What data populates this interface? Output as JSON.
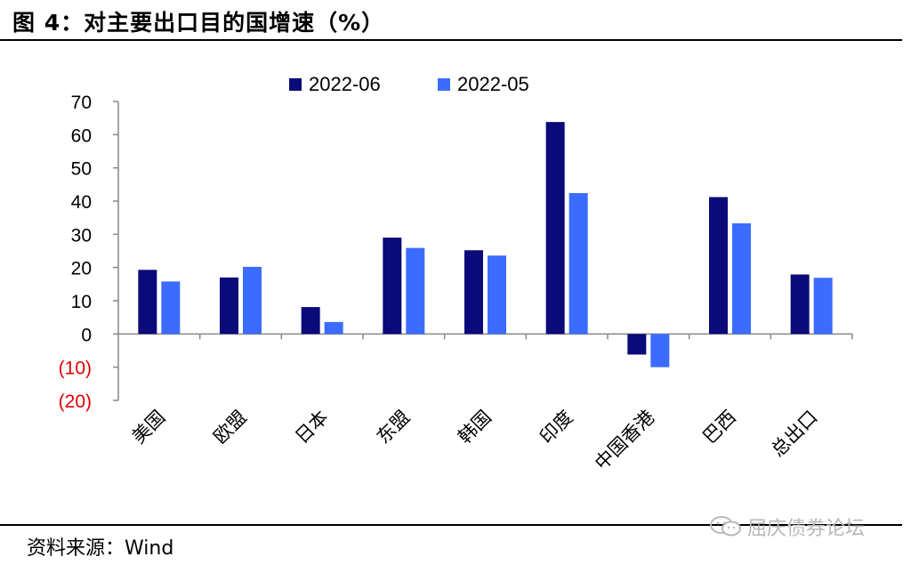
{
  "figure": {
    "title": "图 4：对主要出口目的国增速（%）",
    "source": "资料来源：Wind",
    "watermark": "屈庆债券论坛"
  },
  "chart_data": {
    "type": "bar",
    "categories": [
      "美国",
      "欧盟",
      "日本",
      "东盟",
      "韩国",
      "印度",
      "中国香港",
      "巴西",
      "总出口"
    ],
    "series": [
      {
        "name": "2022-06",
        "color": "#0a0a7a",
        "values": [
          19.3,
          17.0,
          8.1,
          29.0,
          25.2,
          63.8,
          -6.2,
          41.2,
          17.9
        ]
      },
      {
        "name": "2022-05",
        "color": "#3b6cff",
        "values": [
          15.8,
          20.2,
          3.6,
          25.9,
          23.6,
          42.4,
          -10.0,
          33.3,
          16.9
        ]
      }
    ],
    "ylim": [
      -20,
      70
    ],
    "yticks": [
      70,
      60,
      50,
      40,
      30,
      20,
      10,
      0,
      -10,
      -20
    ],
    "ytick_labels": [
      "70",
      "60",
      "50",
      "40",
      "30",
      "20",
      "10",
      "0",
      "(10)",
      "(20)"
    ],
    "negative_tick_color": "#e00000",
    "legend_position": "top-center",
    "grid": false
  }
}
